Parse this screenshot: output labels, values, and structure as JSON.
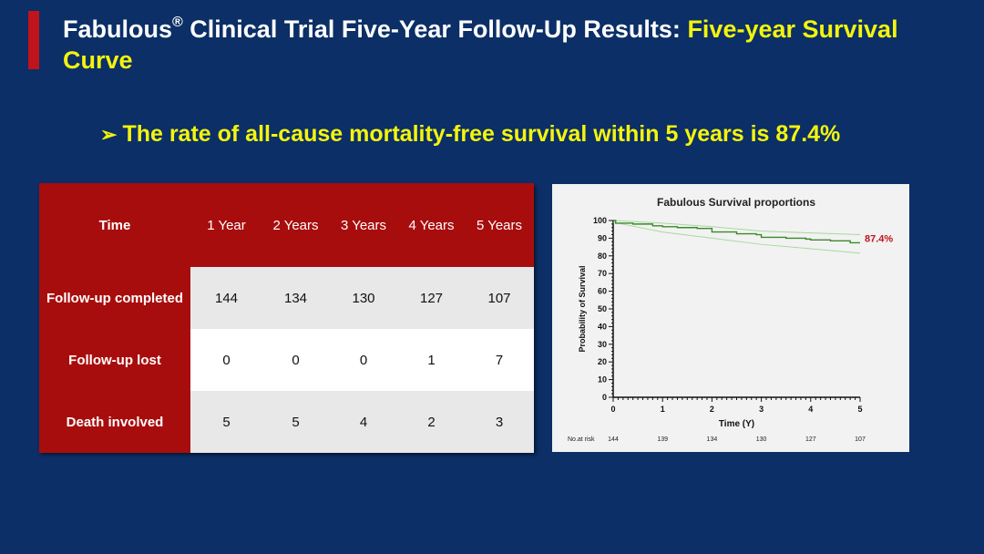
{
  "title": {
    "part1": "Fabulous",
    "reg": "®",
    "part2": " Clinical Trial Five-Year Follow-Up Results: ",
    "highlight": "Five-year Survival Curve"
  },
  "bullet": {
    "arrow": "➢",
    "text": "The rate of all-cause mortality-free survival within 5 years is 87.4%"
  },
  "table": {
    "headers": [
      "Time",
      "1 Year",
      "2 Years",
      "3 Years",
      "4 Years",
      "5 Years"
    ],
    "rows": [
      {
        "label": "Follow-up completed",
        "values": [
          "144",
          "134",
          "130",
          "127",
          "107"
        ]
      },
      {
        "label": "Follow-up lost",
        "values": [
          "0",
          "0",
          "0",
          "1",
          "7"
        ]
      },
      {
        "label": "Death involved",
        "values": [
          "5",
          "5",
          "4",
          "2",
          "3"
        ]
      }
    ]
  },
  "colors": {
    "background": "#0b2f66",
    "accent_red": "#a80d0d",
    "highlight_yellow": "#f4f40e",
    "curve_green": "#3a8a2a",
    "ci_green": "#a8d8a0",
    "label_red": "#c0141c"
  },
  "chart_data": {
    "type": "line",
    "title": "Fabulous Survival proportions",
    "xlabel": "Time (Y)",
    "ylabel": "Probability of Survival",
    "xlim": [
      0,
      5
    ],
    "ylim": [
      0,
      100
    ],
    "xticks": [
      "0",
      "1",
      "2",
      "3",
      "4",
      "5"
    ],
    "yticks": [
      "0",
      "10",
      "20",
      "30",
      "40",
      "50",
      "60",
      "70",
      "80",
      "90",
      "100"
    ],
    "series": [
      {
        "values": [
          [
            0,
            100
          ],
          [
            0.05,
            98.5
          ],
          [
            0.4,
            98.0
          ],
          [
            0.8,
            97.0
          ],
          [
            1.0,
            96.5
          ],
          [
            1.3,
            96.0
          ],
          [
            1.7,
            95.5
          ],
          [
            2.0,
            93.5
          ],
          [
            2.5,
            92.5
          ],
          [
            2.9,
            92.0
          ],
          [
            3.0,
            90.5
          ],
          [
            3.5,
            90.0
          ],
          [
            3.9,
            89.5
          ],
          [
            4.0,
            89.0
          ],
          [
            4.4,
            88.5
          ],
          [
            4.8,
            87.4
          ],
          [
            5.0,
            87.4
          ]
        ]
      }
    ],
    "ci_upper": [
      [
        0,
        100
      ],
      [
        1,
        98.5
      ],
      [
        2,
        96.5
      ],
      [
        3,
        94.0
      ],
      [
        4,
        93.0
      ],
      [
        5,
        92.0
      ]
    ],
    "ci_lower": [
      [
        0,
        99.0
      ],
      [
        1,
        93.5
      ],
      [
        2,
        90.0
      ],
      [
        3,
        86.5
      ],
      [
        4,
        84.0
      ],
      [
        5,
        81.5
      ]
    ],
    "annotation": "87.4%",
    "risk_table": {
      "label": "No.at risk",
      "values": [
        "144",
        "139",
        "134",
        "130",
        "127",
        "107"
      ]
    }
  }
}
